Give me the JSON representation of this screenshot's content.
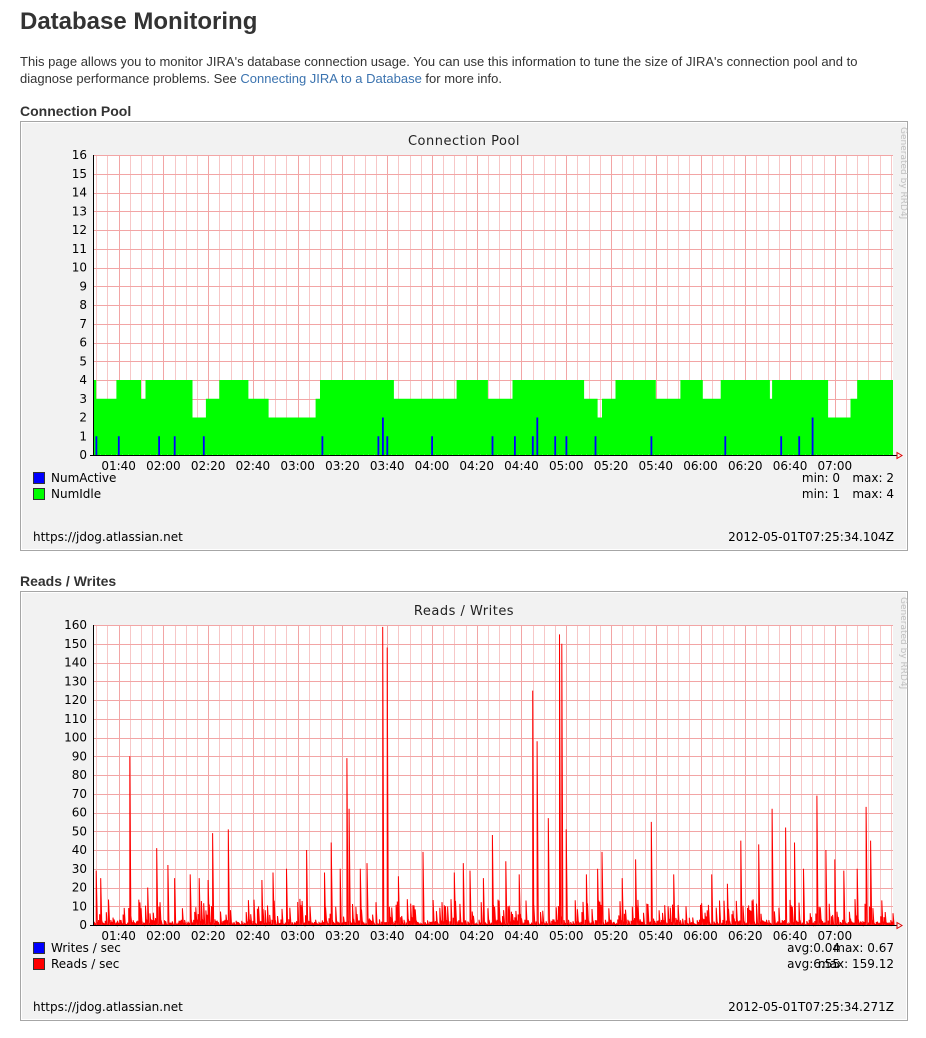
{
  "page": {
    "title": "Database Monitoring",
    "intro_before": "This page allows you to monitor JIRA's database connection usage. You can use this information to tune the size of JIRA's connection pool and to diagnose performance problems. See ",
    "intro_link": "Connecting JIRA to a Database",
    "intro_after": " for more info."
  },
  "sections": {
    "pool_heading": "Connection Pool",
    "rw_heading": "Reads / Writes"
  },
  "charts": {
    "pool": {
      "title": "Connection Pool",
      "watermark": "Generated by RRD4J",
      "url": "https://jdog.atlassian.net",
      "timestamp": "2012-05-01T07:25:34.104Z",
      "legend": [
        {
          "label": "NumActive",
          "color": "#0000ff",
          "min_text": "min: 0",
          "max_text": "max: 2"
        },
        {
          "label": "NumIdle",
          "color": "#00ff00",
          "min_text": "min: 1",
          "max_text": "max: 4"
        }
      ]
    },
    "rw": {
      "title": "Reads / Writes",
      "watermark": "Generated by RRD4J",
      "url": "https://jdog.atlassian.net",
      "timestamp": "2012-05-01T07:25:34.271Z",
      "legend": [
        {
          "label": "Writes / sec",
          "color": "#0000ff",
          "avg_text": "avg:0.04",
          "max_text": "max: 0.67"
        },
        {
          "label": "Reads / sec",
          "color": "#ff0000",
          "avg_text": "avg:6.55",
          "max_text": "max: 159.12"
        }
      ]
    }
  },
  "chart_data": [
    {
      "type": "area",
      "title": "Connection Pool",
      "x_tick_labels": [
        "01:40",
        "02:00",
        "02:20",
        "02:40",
        "03:00",
        "03:20",
        "03:40",
        "04:00",
        "04:20",
        "04:40",
        "05:00",
        "05:20",
        "05:40",
        "06:00",
        "06:20",
        "06:40",
        "07:00"
      ],
      "x_range": [
        "01:29",
        "07:26"
      ],
      "ylim": [
        0,
        16
      ],
      "y_ticks": [
        0,
        1,
        2,
        3,
        4,
        5,
        6,
        7,
        8,
        9,
        10,
        11,
        12,
        13,
        14,
        15,
        16
      ],
      "grid": true,
      "legend_position": "bottom-left",
      "series": [
        {
          "name": "NumIdle",
          "color": "#00ff00",
          "steps": [
            [
              "01:29",
              4
            ],
            [
              "01:30",
              3
            ],
            [
              "01:39",
              4
            ],
            [
              "01:50",
              3
            ],
            [
              "01:52",
              4
            ],
            [
              "02:13",
              2
            ],
            [
              "02:19",
              3
            ],
            [
              "02:25",
              4
            ],
            [
              "02:38",
              3
            ],
            [
              "02:47",
              2
            ],
            [
              "03:08",
              3
            ],
            [
              "03:10",
              4
            ],
            [
              "03:43",
              3
            ],
            [
              "04:11",
              4
            ],
            [
              "04:25",
              3
            ],
            [
              "04:36",
              4
            ],
            [
              "05:08",
              3
            ],
            [
              "05:14",
              2
            ],
            [
              "05:16",
              3
            ],
            [
              "05:22",
              4
            ],
            [
              "05:40",
              3
            ],
            [
              "05:51",
              4
            ],
            [
              "06:01",
              3
            ],
            [
              "06:09",
              4
            ],
            [
              "06:31",
              3
            ],
            [
              "06:32",
              4
            ],
            [
              "06:57",
              2
            ],
            [
              "07:07",
              3
            ],
            [
              "07:10",
              4
            ],
            [
              "07:26",
              4
            ]
          ]
        },
        {
          "name": "NumActive",
          "color": "#0000ff",
          "spikes": [
            [
              "01:30",
              1
            ],
            [
              "01:40",
              1
            ],
            [
              "01:58",
              1
            ],
            [
              "02:05",
              1
            ],
            [
              "02:18",
              1
            ],
            [
              "03:11",
              1
            ],
            [
              "03:36",
              1
            ],
            [
              "03:38",
              2
            ],
            [
              "03:40",
              1
            ],
            [
              "04:00",
              1
            ],
            [
              "04:27",
              1
            ],
            [
              "04:37",
              1
            ],
            [
              "04:45",
              1
            ],
            [
              "04:47",
              2
            ],
            [
              "04:55",
              1
            ],
            [
              "05:00",
              1
            ],
            [
              "05:13",
              1
            ],
            [
              "05:38",
              1
            ],
            [
              "06:11",
              1
            ],
            [
              "06:36",
              1
            ],
            [
              "06:44",
              1
            ],
            [
              "06:50",
              2
            ]
          ],
          "min": 0,
          "max": 2
        }
      ]
    },
    {
      "type": "line",
      "title": "Reads / Writes",
      "x_tick_labels": [
        "01:40",
        "02:00",
        "02:20",
        "02:40",
        "03:00",
        "03:20",
        "03:40",
        "04:00",
        "04:20",
        "04:40",
        "05:00",
        "05:20",
        "05:40",
        "06:00",
        "06:20",
        "06:40",
        "07:00"
      ],
      "x_range": [
        "01:29",
        "07:26"
      ],
      "ylim": [
        0,
        160
      ],
      "y_ticks": [
        0,
        10,
        20,
        30,
        40,
        50,
        60,
        70,
        80,
        90,
        100,
        110,
        120,
        130,
        140,
        150,
        160
      ],
      "grid": true,
      "legend_position": "bottom-left",
      "series": [
        {
          "name": "Reads / sec",
          "color": "#ff0000",
          "avg": 6.55,
          "max": 159.12,
          "peaks": [
            [
              "01:30",
              29
            ],
            [
              "01:32",
              25
            ],
            [
              "01:45",
              90
            ],
            [
              "01:53",
              20
            ],
            [
              "01:57",
              41
            ],
            [
              "02:02",
              32
            ],
            [
              "02:05",
              25
            ],
            [
              "02:12",
              27
            ],
            [
              "02:16",
              25
            ],
            [
              "02:20",
              24
            ],
            [
              "02:22",
              49
            ],
            [
              "02:29",
              51
            ],
            [
              "02:44",
              24
            ],
            [
              "02:49",
              28
            ],
            [
              "02:55",
              30
            ],
            [
              "03:04",
              40
            ],
            [
              "03:12",
              28
            ],
            [
              "03:15",
              44
            ],
            [
              "03:19",
              30
            ],
            [
              "03:22",
              89
            ],
            [
              "03:23",
              62
            ],
            [
              "03:28",
              30
            ],
            [
              "03:31",
              33
            ],
            [
              "03:38",
              159
            ],
            [
              "03:40",
              148
            ],
            [
              "03:45",
              26
            ],
            [
              "03:56",
              39
            ],
            [
              "04:10",
              28
            ],
            [
              "04:14",
              33
            ],
            [
              "04:17",
              29
            ],
            [
              "04:23",
              25
            ],
            [
              "04:27",
              48
            ],
            [
              "04:33",
              34
            ],
            [
              "04:39",
              27
            ],
            [
              "04:45",
              125
            ],
            [
              "04:47",
              98
            ],
            [
              "04:52",
              57
            ],
            [
              "04:57",
              155
            ],
            [
              "04:58",
              150
            ],
            [
              "05:00",
              51
            ],
            [
              "05:09",
              27
            ],
            [
              "05:14",
              30
            ],
            [
              "05:16",
              39
            ],
            [
              "05:25",
              25
            ],
            [
              "05:31",
              35
            ],
            [
              "05:38",
              55
            ],
            [
              "05:48",
              27
            ],
            [
              "06:05",
              27
            ],
            [
              "06:12",
              22
            ],
            [
              "06:18",
              45
            ],
            [
              "06:26",
              43
            ],
            [
              "06:32",
              62
            ],
            [
              "06:38",
              52
            ],
            [
              "06:42",
              44
            ],
            [
              "06:46",
              30
            ],
            [
              "06:52",
              69
            ],
            [
              "06:56",
              40
            ],
            [
              "07:00",
              35
            ],
            [
              "07:04",
              29
            ],
            [
              "07:10",
              30
            ],
            [
              "07:14",
              63
            ],
            [
              "07:16",
              45
            ]
          ]
        },
        {
          "name": "Writes / sec",
          "color": "#0000ff",
          "avg": 0.04,
          "max": 0.67
        }
      ]
    }
  ]
}
